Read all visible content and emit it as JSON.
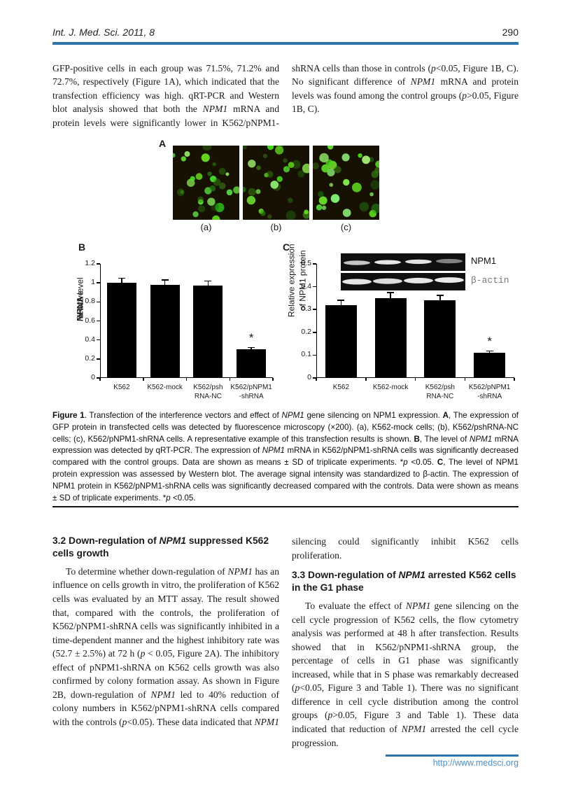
{
  "header": {
    "journal": "Int. J. Med. Sci. 2011, 8",
    "page_number": "290"
  },
  "intro": {
    "paragraph_segments": [
      [
        "GFP-positive cells in each group was 71.5%, 71.2% and 72.7%, respectively (Figure 1A), which indicated that the transfection efficiency was high. qRT-PCR and Western blot analysis showed that both the ",
        ""
      ],
      [
        "NPM1",
        "i"
      ],
      [
        " mRNA and protein levels were significantly lower in K562/pNPM1-shRNA cells than those in controls (",
        ""
      ],
      [
        "p",
        "i"
      ],
      [
        "<0.05, Figure 1B, C). No significant difference of ",
        ""
      ],
      [
        "NPM1",
        "i"
      ],
      [
        " mRNA and protein levels was found among the control groups (",
        ""
      ],
      [
        "p",
        "i"
      ],
      [
        ">0.05, Figure 1B, C).",
        ""
      ]
    ]
  },
  "figure": {
    "panel_a": {
      "label": "A",
      "sub_labels": [
        "(a)",
        "(b)",
        "(c)"
      ]
    },
    "caption_segments": [
      [
        "Figure 1",
        "b"
      ],
      [
        ". Transfection of the interference vectors and effect of ",
        ""
      ],
      [
        "NPM1",
        "i"
      ],
      [
        " gene silencing on NPM1 expression. ",
        ""
      ],
      [
        "A",
        "b"
      ],
      [
        ", The expression of GFP protein in transfected cells was detected by fluorescence microscopy (×200). (a), K562-mock cells; (b), K562/pshRNA-NC cells; (c), K562/pNPM1-shRNA cells. A representative example of this transfection results is shown. ",
        ""
      ],
      [
        "B",
        "b"
      ],
      [
        ", The level of ",
        ""
      ],
      [
        "NPM1",
        "i"
      ],
      [
        " mRNA expression was detected by qRT-PCR. The expression of ",
        ""
      ],
      [
        "NPM1",
        "i"
      ],
      [
        " mRNA in K562/pNPM1-shRNA cells was significantly decreased compared with the control groups. Data are shown as means ± SD of triplicate experiments. *",
        ""
      ],
      [
        "p",
        "i"
      ],
      [
        " <0.05. ",
        ""
      ],
      [
        "C",
        "b"
      ],
      [
        ", The level of NPM1 protein expression was assessed by Western blot. The average signal intensity was standardized to β-actin. The expression of NPM1 protein in K562/pNPM1-shRNA cells was significantly decreased compared with the controls. Data were shown as means ± SD of triplicate experiments. *",
        ""
      ],
      [
        "p",
        "i"
      ],
      [
        " <0.05.",
        ""
      ]
    ]
  },
  "chart_data": [
    {
      "panel": "B",
      "type": "bar",
      "categories": [
        "K562",
        "K562-mock",
        "K562/psh\nRNA-NC",
        "K562/pNPM1\n-shRNA"
      ],
      "values": [
        1.0,
        0.98,
        0.97,
        0.3
      ],
      "errors": [
        0.05,
        0.05,
        0.05,
        0.02
      ],
      "bar_color": "#000000",
      "ylabel_segments": [
        [
          "Relative ",
          ""
        ],
        [
          "NPM1",
          "i"
        ],
        [
          " mRNA level",
          ""
        ]
      ],
      "ylim": [
        0,
        1.2
      ],
      "yticks": [
        0,
        0.2,
        0.4,
        0.6,
        0.8,
        1,
        1.2
      ],
      "ytick_labels": [
        "0",
        "0.2",
        "0.4",
        "0.6",
        "0.8",
        "1",
        "1.2"
      ],
      "grid": false,
      "legend": false,
      "sig_index": 3,
      "sig_marker": "*"
    },
    {
      "panel": "C",
      "type": "bar",
      "categories": [
        "K562",
        "K562-mock",
        "K562/psh\nRNA-NC",
        "K562/pNPM1\n-shRNA"
      ],
      "values": [
        0.32,
        0.35,
        0.34,
        0.11
      ],
      "errors": [
        0.02,
        0.025,
        0.022,
        0.008
      ],
      "bar_color": "#000000",
      "ylabel_segments": [
        [
          "Relative expression of NPM1 protein",
          ""
        ]
      ],
      "ylim": [
        0,
        0.5
      ],
      "yticks": [
        0,
        0.1,
        0.2,
        0.3,
        0.4,
        0.5
      ],
      "ytick_labels": [
        "0",
        "0.1",
        "0.2",
        "0.3",
        "0.4",
        "0.5"
      ],
      "grid": false,
      "legend": false,
      "sig_index": 3,
      "sig_marker": "*",
      "blot": {
        "lanes": 4,
        "rows": [
          {
            "label": "NPM1"
          },
          {
            "label": "β-actin"
          }
        ]
      }
    }
  ],
  "sections": [
    {
      "heading_segments": [
        [
          "3.2 Down-regulation of ",
          ""
        ],
        [
          "NPM1",
          "i"
        ],
        [
          " suppressed K562 cells growth",
          ""
        ]
      ],
      "paragraph_segments": [
        [
          "To determine whether down-regulation of ",
          ""
        ],
        [
          "NPM1",
          "i"
        ],
        [
          " has an influence on cells growth in vitro, the proliferation of K562 cells was evaluated by an MTT assay. The result showed that, compared with the controls, the proliferation of K562/pNPM1-shRNA cells was significantly inhibited in a time-dependent manner and the highest inhibitory rate was (52.7 ± 2.5%) at 72 h (",
          ""
        ],
        [
          "p",
          "i"
        ],
        [
          " < 0.05, Figure 2A). The inhibitory effect of pNPM1-shRNA on K562 cells growth was also confirmed by colony formation assay. As shown in Figure 2B, down-regulation of ",
          ""
        ],
        [
          "NPM1",
          "i"
        ],
        [
          " led to 40% reduction of colony numbers in K562/pNPM1-shRNA cells compared with the controls (",
          ""
        ],
        [
          "p",
          "i"
        ],
        [
          "<0.05). These data indicated that ",
          ""
        ],
        [
          "NPM1",
          "i"
        ],
        [
          " silencing could significantly inhibit K562 cells proliferation.",
          ""
        ]
      ]
    },
    {
      "heading_segments": [
        [
          "3.3 Down-regulation of ",
          ""
        ],
        [
          "NPM1",
          "i"
        ],
        [
          " arrested K562 cells in the G1 phase",
          ""
        ]
      ],
      "paragraph_segments": [
        [
          "To evaluate the effect of ",
          ""
        ],
        [
          "NPM1",
          "i"
        ],
        [
          " gene silencing on the cell cycle progression of K562 cells, the flow cytometry analysis was performed at 48 h after transfection. Results showed that in K562/pNPM1-shRNA group, the percentage of cells in G1 phase was significantly increased, while that in S phase was remarkably decreased (",
          ""
        ],
        [
          "p",
          "i"
        ],
        [
          "<0.05, Figure 3 and Table 1). There was no significant difference in cell cycle distribution among the control groups (",
          ""
        ],
        [
          "p",
          "i"
        ],
        [
          ">0.05, Figure 3 and Table 1). These data indicated that reduction of ",
          ""
        ],
        [
          "NPM1",
          "i"
        ],
        [
          " arrested the cell cycle progression.",
          ""
        ]
      ]
    }
  ],
  "footer": {
    "link": "http://www.medsci.org"
  }
}
